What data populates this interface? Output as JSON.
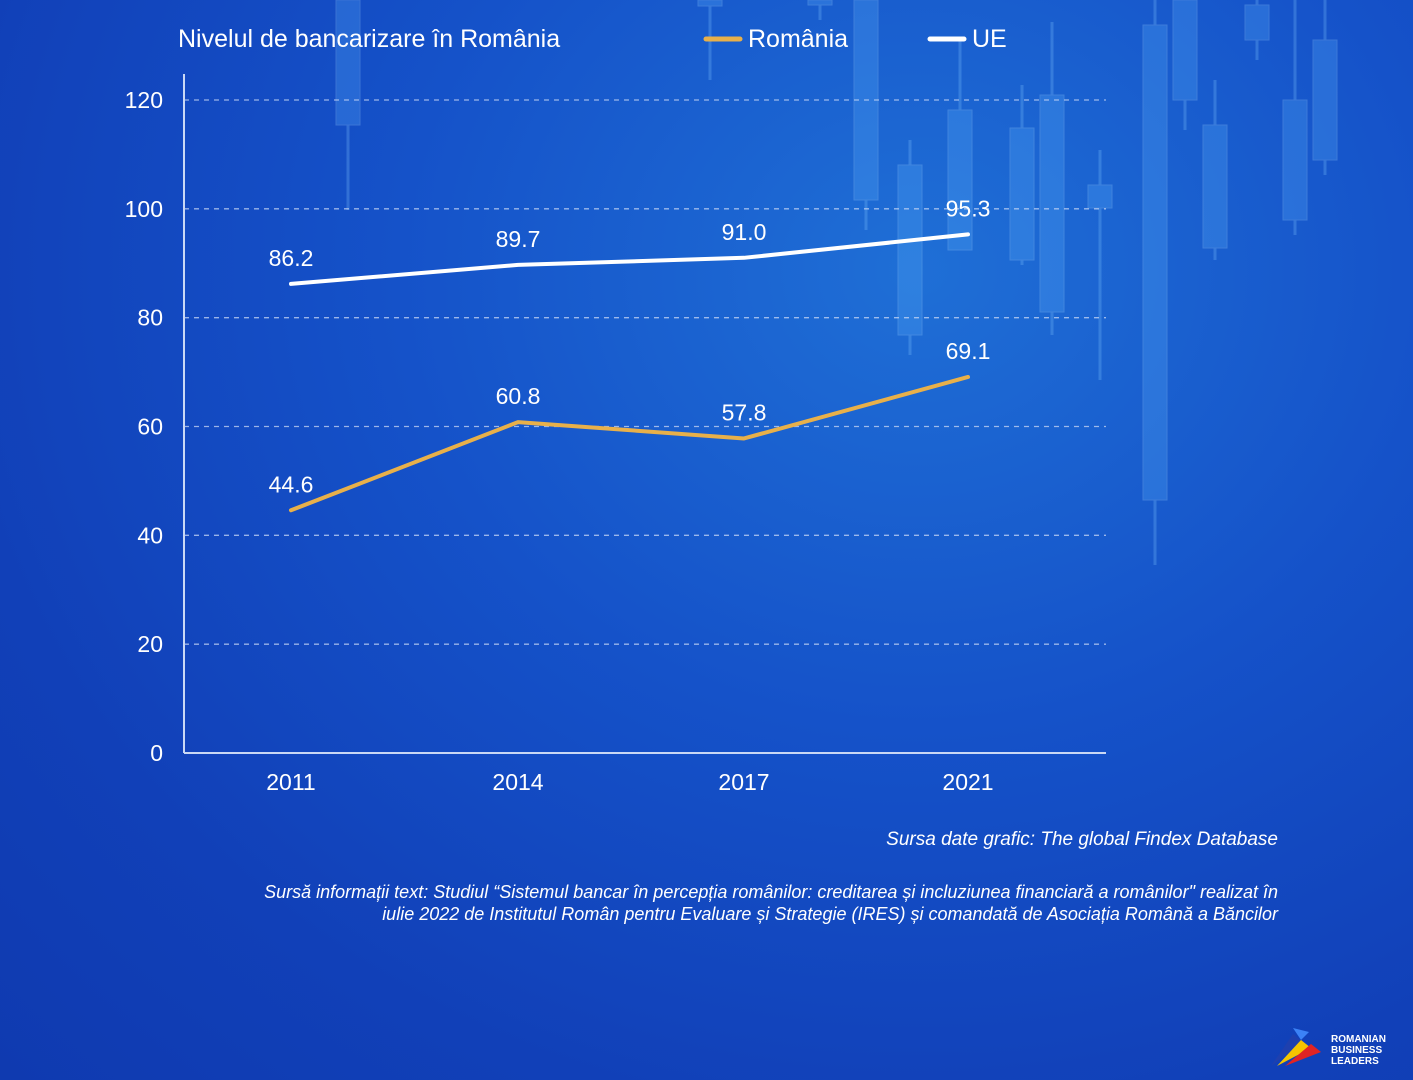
{
  "chart_data": {
    "type": "line",
    "title": "Nivelul de bancarizare în România",
    "categories": [
      "2011",
      "2014",
      "2017",
      "2021"
    ],
    "series": [
      {
        "name": "România",
        "color": "#e8b04a",
        "values": [
          44.6,
          60.8,
          57.8,
          69.1
        ],
        "labels": [
          "44.6",
          "60.8",
          "57.8",
          "69.1"
        ]
      },
      {
        "name": "UE",
        "color": "#ffffff",
        "values": [
          86.2,
          89.7,
          91.0,
          95.3
        ],
        "labels": [
          "86.2",
          "89.7",
          "91.0",
          "95.3"
        ]
      }
    ],
    "yticks": [
      "0",
      "20",
      "40",
      "60",
      "80",
      "100",
      "120"
    ],
    "ylim": [
      0,
      120
    ],
    "grid": true,
    "legend_position": "top-right"
  },
  "footer": {
    "source_chart": "Sursa date grafic: The global Findex Database",
    "source_text_line1": "Sursă informații text: Studiul “Sistemul bancar în percepția românilor: creditarea și incluziunea financiară a românilor\" realizat în",
    "source_text_line2": "iulie 2022 de Institutul Român pentru Evaluare și Strategie (IRES) și comandată de Asociația Română a Băncilor"
  },
  "logo": {
    "line1": "ROMANIAN",
    "line2": "BUSINESS",
    "line3": "LEADERS"
  }
}
